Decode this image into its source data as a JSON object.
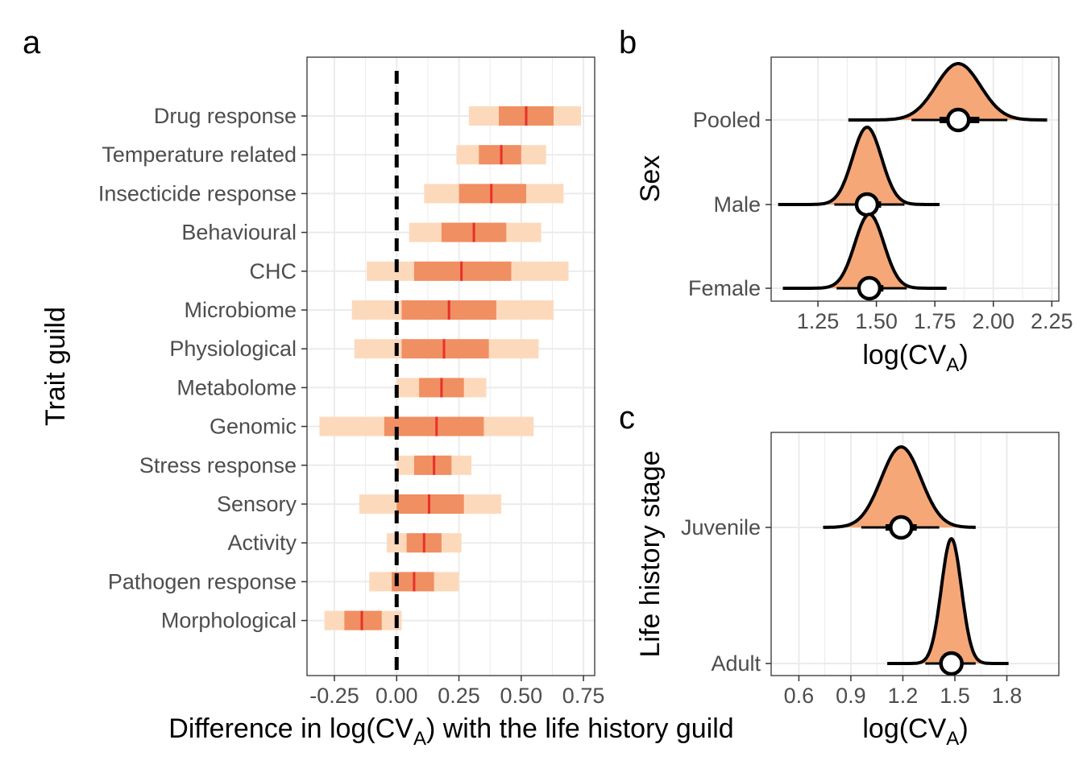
{
  "colors": {
    "outer_interval": "#fdd9bc",
    "inner_interval": "#f08f62",
    "median": "#e8302a",
    "density_fill": "#f5a778",
    "grid": "#ebebeb",
    "zero_line": "#000000"
  },
  "chart_data": [
    {
      "panel": "a",
      "type": "interval",
      "xlabel": "Difference in log(CV",
      "xlabel_sub": "A",
      "xlabel_end": ") with the life history guild",
      "ylabel": "Trait guild",
      "xlim": [
        -0.36,
        0.795
      ],
      "xticks": [
        {
          "value": -0.25,
          "label": "-0.25"
        },
        {
          "value": 0.0,
          "label": "0.00"
        },
        {
          "value": 0.25,
          "label": "0.25"
        },
        {
          "value": 0.5,
          "label": "0.50"
        },
        {
          "value": 0.75,
          "label": "0.75"
        }
      ],
      "reference_line": 0,
      "categories": [
        "Drug response",
        "Temperature related",
        "Insecticide response",
        "Behavioural",
        "CHC",
        "Microbiome",
        "Physiological",
        "Metabolome",
        "Genomic",
        "Stress response",
        "Sensory",
        "Activity",
        "Pathogen response",
        "Morphological"
      ],
      "intervals": [
        {
          "median": 0.52,
          "inner": [
            0.41,
            0.63
          ],
          "outer": [
            0.29,
            0.74
          ]
        },
        {
          "median": 0.42,
          "inner": [
            0.33,
            0.5
          ],
          "outer": [
            0.24,
            0.6
          ]
        },
        {
          "median": 0.38,
          "inner": [
            0.25,
            0.52
          ],
          "outer": [
            0.11,
            0.67
          ]
        },
        {
          "median": 0.31,
          "inner": [
            0.18,
            0.44
          ],
          "outer": [
            0.05,
            0.58
          ]
        },
        {
          "median": 0.26,
          "inner": [
            0.07,
            0.46
          ],
          "outer": [
            -0.12,
            0.69
          ]
        },
        {
          "median": 0.21,
          "inner": [
            0.02,
            0.4
          ],
          "outer": [
            -0.18,
            0.63
          ]
        },
        {
          "median": 0.19,
          "inner": [
            0.02,
            0.37
          ],
          "outer": [
            -0.17,
            0.57
          ]
        },
        {
          "median": 0.18,
          "inner": [
            0.09,
            0.27
          ],
          "outer": [
            0.0,
            0.36
          ]
        },
        {
          "median": 0.16,
          "inner": [
            -0.05,
            0.35
          ],
          "outer": [
            -0.31,
            0.55
          ]
        },
        {
          "median": 0.15,
          "inner": [
            0.07,
            0.22
          ],
          "outer": [
            0.0,
            0.3
          ]
        },
        {
          "median": 0.13,
          "inner": [
            0.0,
            0.27
          ],
          "outer": [
            -0.15,
            0.42
          ]
        },
        {
          "median": 0.11,
          "inner": [
            0.04,
            0.18
          ],
          "outer": [
            -0.04,
            0.26
          ]
        },
        {
          "median": 0.07,
          "inner": [
            -0.02,
            0.15
          ],
          "outer": [
            -0.11,
            0.25
          ]
        },
        {
          "median": -0.14,
          "inner": [
            -0.21,
            -0.06
          ],
          "outer": [
            -0.29,
            0.02
          ]
        }
      ]
    },
    {
      "panel": "b",
      "type": "density",
      "xlabel": "log(CV",
      "xlabel_sub": "A",
      "xlabel_end": ")",
      "ylabel": "Sex",
      "xlim": [
        1.05,
        2.28
      ],
      "xticks": [
        {
          "value": 1.25,
          "label": "1.25"
        },
        {
          "value": 1.5,
          "label": "1.50"
        },
        {
          "value": 1.75,
          "label": "1.75"
        },
        {
          "value": 2.0,
          "label": "2.00"
        },
        {
          "value": 2.25,
          "label": "2.25"
        }
      ],
      "series": [
        {
          "name": "Pooled",
          "mode": 1.85,
          "sd": 0.095,
          "range": [
            1.38,
            2.23
          ],
          "median": 1.85,
          "inner": [
            1.77,
            1.94
          ],
          "outer": [
            1.65,
            2.06
          ]
        },
        {
          "name": "Male",
          "mode": 1.46,
          "sd": 0.062,
          "range": [
            1.08,
            1.77
          ],
          "median": 1.46,
          "inner": [
            1.41,
            1.52
          ],
          "outer": [
            1.32,
            1.62
          ]
        },
        {
          "name": "Female",
          "mode": 1.47,
          "sd": 0.062,
          "range": [
            1.1,
            1.8
          ],
          "median": 1.47,
          "inner": [
            1.42,
            1.53
          ],
          "outer": [
            1.33,
            1.63
          ]
        }
      ]
    },
    {
      "panel": "c",
      "type": "density",
      "xlabel": "log(CV",
      "xlabel_sub": "A",
      "xlabel_end": ")",
      "ylabel": "Life history stage",
      "xlim": [
        0.44,
        2.1
      ],
      "xticks": [
        {
          "value": 0.6,
          "label": "0.6"
        },
        {
          "value": 0.9,
          "label": "0.9"
        },
        {
          "value": 1.2,
          "label": "1.2"
        },
        {
          "value": 1.5,
          "label": "1.5"
        },
        {
          "value": 1.8,
          "label": "1.8"
        }
      ],
      "series": [
        {
          "name": "Juvenile",
          "mode": 1.19,
          "sd": 0.115,
          "range": [
            0.74,
            1.62
          ],
          "median": 1.19,
          "inner": [
            1.1,
            1.28
          ],
          "outer": [
            0.96,
            1.41
          ]
        },
        {
          "name": "Adult",
          "mode": 1.48,
          "sd": 0.058,
          "range": [
            1.11,
            1.81
          ],
          "median": 1.48,
          "inner": [
            1.44,
            1.53
          ],
          "outer": [
            1.33,
            1.62
          ]
        }
      ]
    }
  ]
}
